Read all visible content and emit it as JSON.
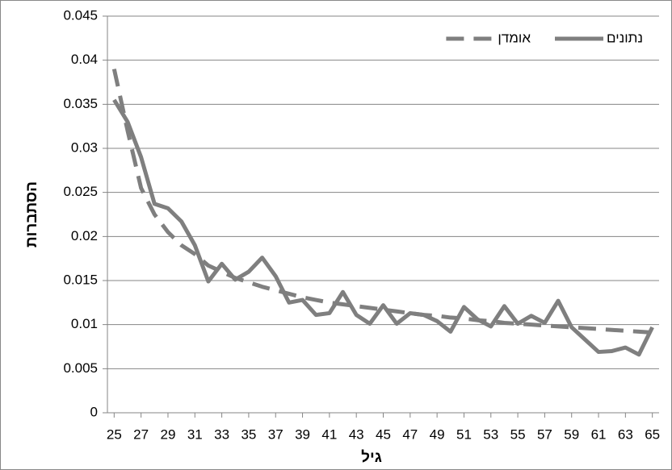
{
  "chart_data": {
    "type": "line",
    "x_label": "גיל",
    "y_label": "הסתברות",
    "x": [
      25,
      26,
      27,
      28,
      29,
      30,
      31,
      32,
      33,
      34,
      35,
      36,
      37,
      38,
      39,
      40,
      41,
      42,
      43,
      44,
      45,
      46,
      47,
      48,
      49,
      50,
      51,
      52,
      53,
      54,
      55,
      56,
      57,
      58,
      59,
      60,
      61,
      62,
      63,
      64,
      65
    ],
    "xlim": [
      24.5,
      65.5
    ],
    "xticks": [
      25,
      27,
      29,
      31,
      33,
      35,
      37,
      39,
      41,
      43,
      45,
      47,
      49,
      51,
      53,
      55,
      57,
      59,
      61,
      63,
      65
    ],
    "ylim": [
      0,
      0.045
    ],
    "yticks": [
      0,
      0.005,
      0.01,
      0.015,
      0.02,
      0.025,
      0.03,
      0.035,
      0.04,
      0.045
    ],
    "grid": true,
    "legend": "top-right",
    "series": [
      {
        "name": "נתונים",
        "color": "#7f7f7f",
        "dash": "solid",
        "values": [
          0.0355,
          0.033,
          0.029,
          0.0237,
          0.0232,
          0.0217,
          0.019,
          0.0149,
          0.0169,
          0.0151,
          0.016,
          0.0176,
          0.0155,
          0.0125,
          0.0128,
          0.0111,
          0.0113,
          0.0137,
          0.0111,
          0.0101,
          0.0122,
          0.0101,
          0.0113,
          0.0111,
          0.0104,
          0.0092,
          0.012,
          0.0106,
          0.0098,
          0.0121,
          0.0101,
          0.011,
          0.0102,
          0.0127,
          0.0097,
          0.0083,
          0.0069,
          0.007,
          0.0074,
          0.0066,
          0.0097
        ]
      },
      {
        "name": "אומדן",
        "color": "#7f7f7f",
        "dash": "dashed",
        "values": [
          0.039,
          0.032,
          0.0255,
          0.0225,
          0.0205,
          0.019,
          0.018,
          0.0167,
          0.016,
          0.0153,
          0.0148,
          0.0143,
          0.0139,
          0.0135,
          0.0131,
          0.0128,
          0.0125,
          0.0123,
          0.0121,
          0.0119,
          0.0117,
          0.0115,
          0.0113,
          0.0111,
          0.011,
          0.0108,
          0.0107,
          0.0105,
          0.0104,
          0.0102,
          0.0101,
          0.01,
          0.0099,
          0.0098,
          0.0097,
          0.0096,
          0.0095,
          0.0094,
          0.0093,
          0.0092,
          0.0091
        ]
      }
    ]
  }
}
